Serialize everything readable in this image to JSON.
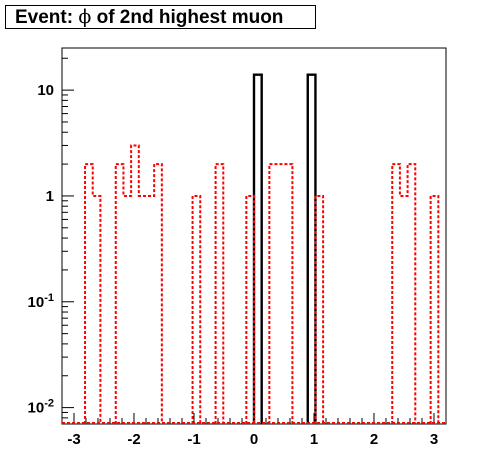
{
  "title": {
    "prefix": "Event: ",
    "symbol": "ϕ",
    "suffix": " of 2nd highest muon"
  },
  "colors": {
    "black_series": "#000000",
    "red_series": "#ff0000",
    "axis": "#000000"
  },
  "chart_data": {
    "type": "histogram",
    "title": "Event: ϕ of 2nd highest muon",
    "xlabel": "",
    "ylabel": "",
    "xlim": [
      -3.2,
      3.2
    ],
    "ylim": [
      0.007,
      25
    ],
    "yscale": "log",
    "xticks": [
      {
        "value": -3,
        "label": "-3"
      },
      {
        "value": -2,
        "label": "-2"
      },
      {
        "value": -1,
        "label": "-1"
      },
      {
        "value": 0,
        "label": "0"
      },
      {
        "value": 1,
        "label": "1"
      },
      {
        "value": 2,
        "label": "2"
      },
      {
        "value": 3,
        "label": "3"
      }
    ],
    "yticks": [
      {
        "value": 0.01,
        "base": "10",
        "exp": "-2"
      },
      {
        "value": 0.1,
        "base": "10",
        "exp": "-1"
      },
      {
        "value": 1,
        "base": "1",
        "exp": ""
      },
      {
        "value": 10,
        "base": "10",
        "exp": ""
      }
    ],
    "grid": false,
    "legend": "none",
    "bin_width": 0.128,
    "series": [
      {
        "style": "solid",
        "color": "#000000",
        "bins": [
          {
            "x0": 0.0,
            "x1": 0.128,
            "y": 14
          },
          {
            "x0": 0.896,
            "x1": 1.024,
            "y": 14
          }
        ]
      },
      {
        "style": "dotted",
        "color": "#ff0000",
        "bins": [
          {
            "x0": -2.816,
            "x1": -2.688,
            "y": 2
          },
          {
            "x0": -2.688,
            "x1": -2.56,
            "y": 1
          },
          {
            "x0": -2.304,
            "x1": -2.176,
            "y": 2
          },
          {
            "x0": -2.176,
            "x1": -2.048,
            "y": 1
          },
          {
            "x0": -2.048,
            "x1": -1.92,
            "y": 3
          },
          {
            "x0": -1.92,
            "x1": -1.664,
            "y": 1
          },
          {
            "x0": -1.664,
            "x1": -1.536,
            "y": 2
          },
          {
            "x0": -1.024,
            "x1": -0.896,
            "y": 1
          },
          {
            "x0": -0.64,
            "x1": -0.512,
            "y": 2
          },
          {
            "x0": -0.128,
            "x1": 0.0,
            "y": 1
          },
          {
            "x0": 0.256,
            "x1": 0.512,
            "y": 2
          },
          {
            "x0": 0.512,
            "x1": 0.64,
            "y": 2
          },
          {
            "x0": 1.024,
            "x1": 1.152,
            "y": 1
          },
          {
            "x0": 2.304,
            "x1": 2.432,
            "y": 2
          },
          {
            "x0": 2.432,
            "x1": 2.56,
            "y": 1
          },
          {
            "x0": 2.56,
            "x1": 2.688,
            "y": 2
          },
          {
            "x0": 2.944,
            "x1": 3.072,
            "y": 1
          }
        ]
      }
    ]
  }
}
